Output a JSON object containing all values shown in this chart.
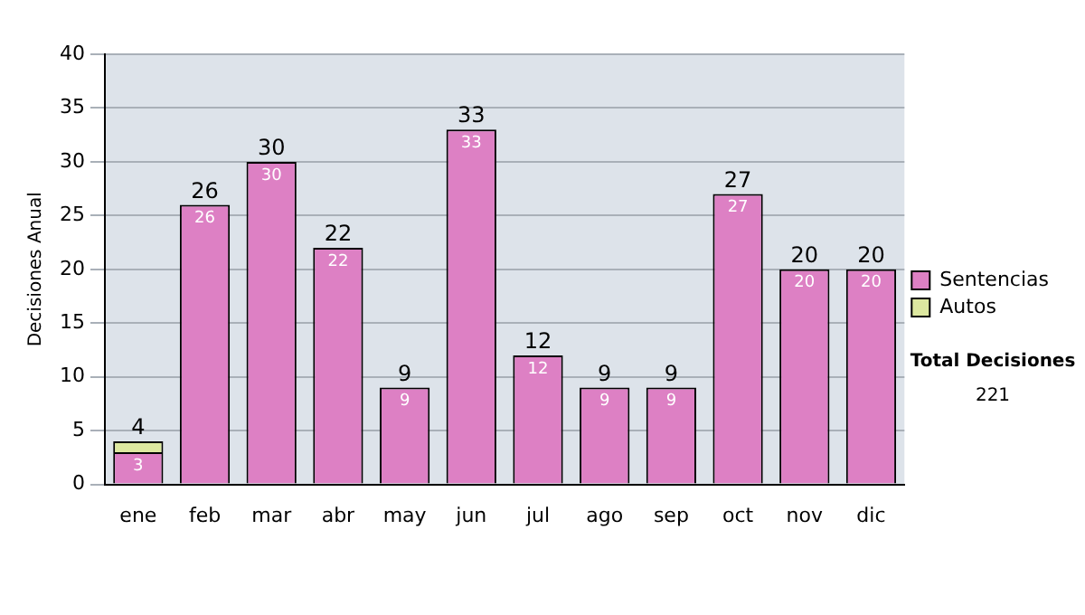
{
  "chart_data": {
    "type": "bar",
    "stacked": true,
    "ylabel": "Decisiones Anual",
    "categories": [
      "ene",
      "feb",
      "mar",
      "abr",
      "may",
      "jun",
      "jul",
      "ago",
      "sep",
      "oct",
      "nov",
      "dic"
    ],
    "series": [
      {
        "name": "Sentencias",
        "color": "#dd80c4",
        "values": [
          3,
          26,
          30,
          22,
          9,
          33,
          12,
          9,
          9,
          27,
          20,
          20
        ],
        "value_labels": [
          "3",
          "26",
          "30",
          "22",
          "9",
          "33",
          "12",
          "9",
          "9",
          "27",
          "20",
          "20"
        ]
      },
      {
        "name": "Autos",
        "color": "#dde8a0",
        "values": [
          1,
          0,
          0,
          0,
          0,
          0,
          0,
          0,
          0,
          0,
          0,
          0
        ]
      }
    ],
    "totals": [
      "4",
      "26",
      "30",
      "22",
      "9",
      "33",
      "12",
      "9",
      "9",
      "27",
      "20",
      "20"
    ],
    "ylim": [
      0,
      40
    ],
    "yticks": [
      0,
      5,
      10,
      15,
      20,
      25,
      30,
      35,
      40
    ],
    "grid": "y",
    "legend": "right",
    "annotations": [
      "Total Decisiones",
      "221"
    ]
  }
}
